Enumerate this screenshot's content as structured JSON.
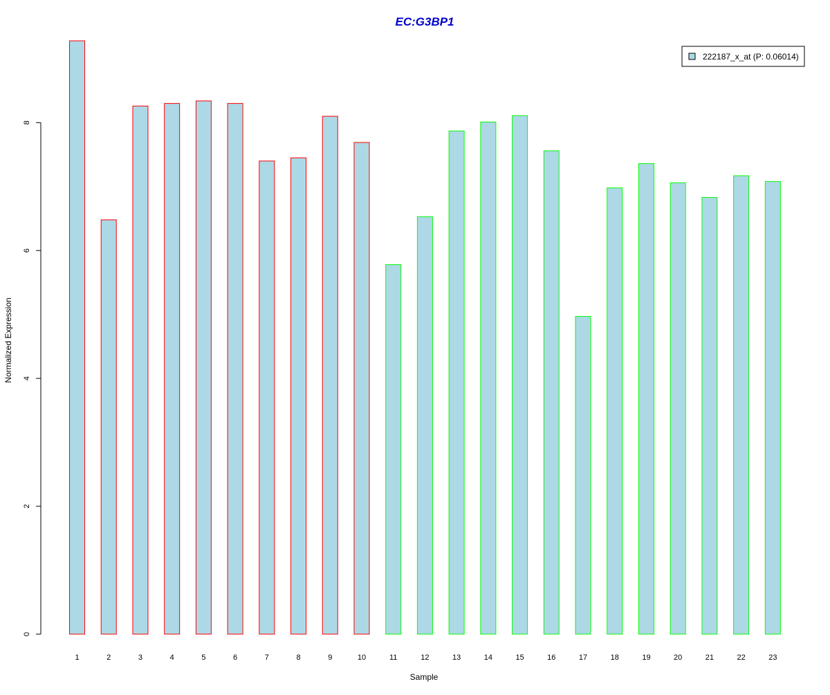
{
  "chart_data": {
    "type": "bar",
    "title": "EC:G3BP1",
    "xlabel": "Sample",
    "ylabel": "Normalized Expression",
    "categories": [
      "1",
      "2",
      "3",
      "4",
      "5",
      "6",
      "7",
      "8",
      "9",
      "10",
      "11",
      "12",
      "13",
      "14",
      "15",
      "16",
      "17",
      "18",
      "19",
      "20",
      "21",
      "22",
      "23"
    ],
    "series": [
      {
        "name": "222187_x_at (P: 0.06014)",
        "values": [
          9.28,
          6.48,
          8.26,
          8.3,
          8.34,
          8.3,
          7.4,
          7.45,
          8.1,
          7.69,
          5.78,
          6.53,
          7.87,
          8.01,
          8.11,
          7.56,
          4.97,
          6.98,
          7.36,
          7.06,
          6.83,
          7.17,
          7.08
        ]
      }
    ],
    "groups": [
      {
        "samples": [
          1,
          10
        ],
        "border_color": "#ff0000"
      },
      {
        "samples": [
          11,
          23
        ],
        "border_color": "#00ff00"
      }
    ],
    "ylim": [
      0,
      9.28
    ],
    "yticks": [
      0,
      2,
      4,
      6,
      8
    ],
    "legend_position": "top-right",
    "grid": false
  },
  "colors": {
    "title": "#0000cc",
    "bar_fill": "#add8e6",
    "axis": "#000000"
  }
}
